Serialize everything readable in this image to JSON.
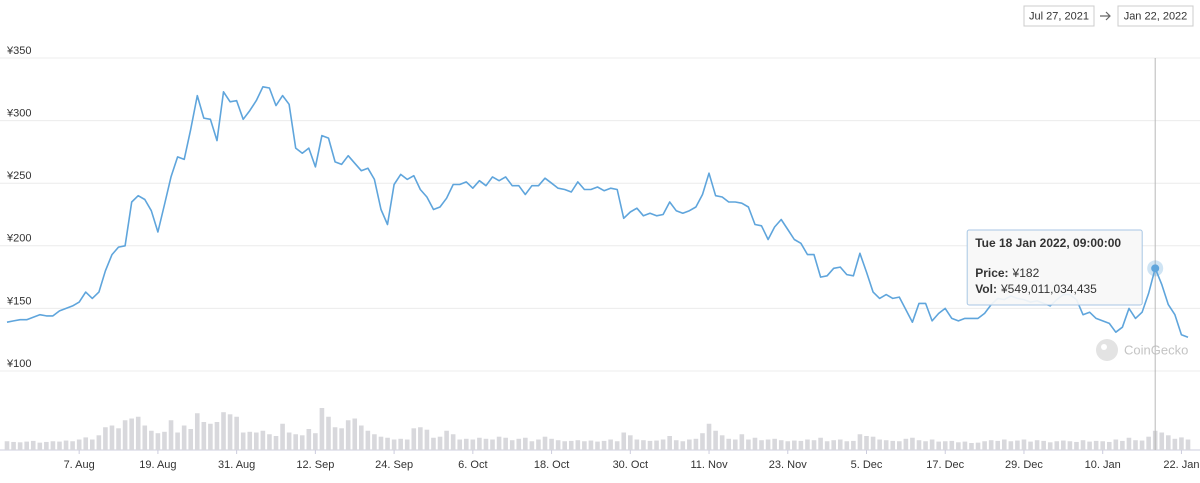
{
  "chart_data": {
    "type": "line",
    "range": {
      "from": "Jul 27, 2021",
      "to": "Jan 22, 2022"
    },
    "watermark": "CoinGecko",
    "x": [
      "2021-07-27",
      "2021-07-28",
      "2021-07-29",
      "2021-07-30",
      "2021-07-31",
      "2021-08-01",
      "2021-08-02",
      "2021-08-03",
      "2021-08-04",
      "2021-08-05",
      "2021-08-06",
      "2021-08-07",
      "2021-08-08",
      "2021-08-09",
      "2021-08-10",
      "2021-08-11",
      "2021-08-12",
      "2021-08-13",
      "2021-08-14",
      "2021-08-15",
      "2021-08-16",
      "2021-08-17",
      "2021-08-18",
      "2021-08-19",
      "2021-08-20",
      "2021-08-21",
      "2021-08-22",
      "2021-08-23",
      "2021-08-24",
      "2021-08-25",
      "2021-08-26",
      "2021-08-27",
      "2021-08-28",
      "2021-08-29",
      "2021-08-30",
      "2021-08-31",
      "2021-09-01",
      "2021-09-02",
      "2021-09-03",
      "2021-09-04",
      "2021-09-05",
      "2021-09-06",
      "2021-09-07",
      "2021-09-08",
      "2021-09-09",
      "2021-09-10",
      "2021-09-11",
      "2021-09-12",
      "2021-09-13",
      "2021-09-14",
      "2021-09-15",
      "2021-09-16",
      "2021-09-17",
      "2021-09-18",
      "2021-09-19",
      "2021-09-20",
      "2021-09-21",
      "2021-09-22",
      "2021-09-23",
      "2021-09-24",
      "2021-09-25",
      "2021-09-26",
      "2021-09-27",
      "2021-09-28",
      "2021-09-29",
      "2021-09-30",
      "2021-10-01",
      "2021-10-02",
      "2021-10-03",
      "2021-10-04",
      "2021-10-05",
      "2021-10-06",
      "2021-10-07",
      "2021-10-08",
      "2021-10-09",
      "2021-10-10",
      "2021-10-11",
      "2021-10-12",
      "2021-10-13",
      "2021-10-14",
      "2021-10-15",
      "2021-10-16",
      "2021-10-17",
      "2021-10-18",
      "2021-10-19",
      "2021-10-20",
      "2021-10-21",
      "2021-10-22",
      "2021-10-23",
      "2021-10-24",
      "2021-10-25",
      "2021-10-26",
      "2021-10-27",
      "2021-10-28",
      "2021-10-29",
      "2021-10-30",
      "2021-10-31",
      "2021-11-01",
      "2021-11-02",
      "2021-11-03",
      "2021-11-04",
      "2021-11-05",
      "2021-11-06",
      "2021-11-07",
      "2021-11-08",
      "2021-11-09",
      "2021-11-10",
      "2021-11-11",
      "2021-11-12",
      "2021-11-13",
      "2021-11-14",
      "2021-11-15",
      "2021-11-16",
      "2021-11-17",
      "2021-11-18",
      "2021-11-19",
      "2021-11-20",
      "2021-11-21",
      "2021-11-22",
      "2021-11-23",
      "2021-11-24",
      "2021-11-25",
      "2021-11-26",
      "2021-11-27",
      "2021-11-28",
      "2021-11-29",
      "2021-11-30",
      "2021-12-01",
      "2021-12-02",
      "2021-12-03",
      "2021-12-04",
      "2021-12-05",
      "2021-12-06",
      "2021-12-07",
      "2021-12-08",
      "2021-12-09",
      "2021-12-10",
      "2021-12-11",
      "2021-12-12",
      "2021-12-13",
      "2021-12-14",
      "2021-12-15",
      "2021-12-16",
      "2021-12-17",
      "2021-12-18",
      "2021-12-19",
      "2021-12-20",
      "2021-12-21",
      "2021-12-22",
      "2021-12-23",
      "2021-12-24",
      "2021-12-25",
      "2021-12-26",
      "2021-12-27",
      "2021-12-28",
      "2021-12-29",
      "2021-12-30",
      "2021-12-31",
      "2022-01-01",
      "2022-01-02",
      "2022-01-03",
      "2022-01-04",
      "2022-01-05",
      "2022-01-06",
      "2022-01-07",
      "2022-01-08",
      "2022-01-09",
      "2022-01-10",
      "2022-01-11",
      "2022-01-12",
      "2022-01-13",
      "2022-01-14",
      "2022-01-15",
      "2022-01-16",
      "2022-01-17",
      "2022-01-18",
      "2022-01-19",
      "2022-01-20",
      "2022-01-21",
      "2022-01-22",
      "2022-01-23"
    ],
    "xlim": [
      "2021-07-27",
      "2022-01-23"
    ],
    "xticks": [
      {
        "value": "2021-08-07",
        "label": "7. Aug"
      },
      {
        "value": "2021-08-19",
        "label": "19. Aug"
      },
      {
        "value": "2021-08-31",
        "label": "31. Aug"
      },
      {
        "value": "2021-09-12",
        "label": "12. Sep"
      },
      {
        "value": "2021-09-24",
        "label": "24. Sep"
      },
      {
        "value": "2021-10-06",
        "label": "6. Oct"
      },
      {
        "value": "2021-10-18",
        "label": "18. Oct"
      },
      {
        "value": "2021-10-30",
        "label": "30. Oct"
      },
      {
        "value": "2021-11-11",
        "label": "11. Nov"
      },
      {
        "value": "2021-11-23",
        "label": "23. Nov"
      },
      {
        "value": "2021-12-05",
        "label": "5. Dec"
      },
      {
        "value": "2021-12-17",
        "label": "17. Dec"
      },
      {
        "value": "2021-12-29",
        "label": "29. Dec"
      },
      {
        "value": "2022-01-10",
        "label": "10. Jan"
      },
      {
        "value": "2022-01-22",
        "label": "22. Jan"
      }
    ],
    "ylim": [
      100,
      350
    ],
    "yticks": [
      {
        "value": 100,
        "label": "¥100"
      },
      {
        "value": 150,
        "label": "¥150"
      },
      {
        "value": 200,
        "label": "¥200"
      },
      {
        "value": 250,
        "label": "¥250"
      },
      {
        "value": 300,
        "label": "¥300"
      },
      {
        "value": 350,
        "label": "¥350"
      }
    ],
    "grid": true,
    "series": [
      {
        "name": "Price:",
        "color": "#5fa5dc",
        "values": [
          139,
          140,
          141,
          141,
          143,
          145,
          144,
          144,
          148,
          150,
          152,
          155,
          163,
          158,
          163,
          180,
          193,
          199,
          200,
          235,
          240,
          237,
          228,
          211,
          233,
          255,
          271,
          269,
          293,
          320,
          302,
          301,
          284,
          323,
          315,
          316,
          301,
          308,
          316,
          327,
          326,
          312,
          320,
          313,
          278,
          274,
          278,
          263,
          288,
          286,
          267,
          265,
          272,
          266,
          260,
          262,
          253,
          229,
          217,
          249,
          257,
          253,
          256,
          245,
          239,
          229,
          231,
          238,
          249,
          249,
          251,
          246,
          252,
          248,
          255,
          252,
          255,
          248,
          248,
          241,
          248,
          248,
          254,
          250,
          246,
          245,
          243,
          251,
          245,
          245,
          247,
          244,
          246,
          245,
          222,
          227,
          230,
          224,
          226,
          224,
          225,
          235,
          228,
          226,
          228,
          231,
          241,
          258,
          240,
          239,
          235,
          235,
          234,
          231,
          217,
          216,
          205,
          215,
          221,
          213,
          205,
          202,
          193,
          193,
          175,
          176,
          182,
          183,
          177,
          176,
          194,
          179,
          163,
          158,
          161,
          158,
          159,
          149,
          139,
          154,
          154,
          140,
          146,
          150,
          142,
          140,
          142,
          142,
          142,
          146,
          153,
          158,
          157,
          160,
          158,
          157,
          155,
          156,
          154,
          152,
          157,
          161,
          161,
          157,
          145,
          147,
          142,
          140,
          138,
          131,
          135,
          150,
          142,
          147,
          162,
          182,
          169,
          153,
          145,
          129,
          127
        ]
      },
      {
        "name": "Vol:",
        "color": "#d8d8dc",
        "type": "bar",
        "values": [
          250000000000.0,
          230000000000.0,
          220000000000.0,
          240000000000.0,
          260000000000.0,
          210000000000.0,
          230000000000.0,
          250000000000.0,
          240000000000.0,
          270000000000.0,
          250000000000.0,
          300000000000.0,
          360000000000.0,
          300000000000.0,
          420000000000.0,
          650000000000.0,
          700000000000.0,
          620000000000.0,
          850000000000.0,
          900000000000.0,
          950000000000.0,
          700000000000.0,
          550000000000.0,
          480000000000.0,
          520000000000.0,
          850000000000.0,
          500000000000.0,
          700000000000.0,
          600000000000.0,
          1050000000000.0,
          800000000000.0,
          750000000000.0,
          800000000000.0,
          1080000000000.0,
          1020000000000.0,
          950000000000.0,
          500000000000.0,
          520000000000.0,
          500000000000.0,
          550000000000.0,
          450000000000.0,
          400000000000.0,
          750000000000.0,
          500000000000.0,
          450000000000.0,
          420000000000.0,
          600000000000.0,
          480000000000.0,
          1200000000000.0,
          950000000000.0,
          650000000000.0,
          620000000000.0,
          850000000000.0,
          900000000000.0,
          700000000000.0,
          550000000000.0,
          450000000000.0,
          380000000000.0,
          350000000000.0,
          300000000000.0,
          320000000000.0,
          300000000000.0,
          620000000000.0,
          650000000000.0,
          580000000000.0,
          350000000000.0,
          380000000000.0,
          550000000000.0,
          450000000000.0,
          300000000000.0,
          320000000000.0,
          300000000000.0,
          350000000000.0,
          320000000000.0,
          300000000000.0,
          380000000000.0,
          350000000000.0,
          280000000000.0,
          320000000000.0,
          350000000000.0,
          250000000000.0,
          300000000000.0,
          380000000000.0,
          320000000000.0,
          280000000000.0,
          250000000000.0,
          260000000000.0,
          280000000000.0,
          250000000000.0,
          270000000000.0,
          240000000000.0,
          260000000000.0,
          300000000000.0,
          250000000000.0,
          500000000000.0,
          420000000000.0,
          300000000000.0,
          280000000000.0,
          260000000000.0,
          270000000000.0,
          300000000000.0,
          400000000000.0,
          280000000000.0,
          250000000000.0,
          300000000000.0,
          320000000000.0,
          480000000000.0,
          750000000000.0,
          550000000000.0,
          420000000000.0,
          320000000000.0,
          300000000000.0,
          450000000000.0,
          300000000000.0,
          350000000000.0,
          280000000000.0,
          300000000000.0,
          320000000000.0,
          280000000000.0,
          250000000000.0,
          270000000000.0,
          260000000000.0,
          300000000000.0,
          280000000000.0,
          350000000000.0,
          250000000000.0,
          280000000000.0,
          300000000000.0,
          250000000000.0,
          260000000000.0,
          450000000000.0,
          400000000000.0,
          380000000000.0,
          300000000000.0,
          280000000000.0,
          260000000000.0,
          250000000000.0,
          320000000000.0,
          350000000000.0,
          280000000000.0,
          250000000000.0,
          300000000000.0,
          240000000000.0,
          250000000000.0,
          260000000000.0,
          220000000000.0,
          240000000000.0,
          200000000000.0,
          210000000000.0,
          250000000000.0,
          280000000000.0,
          260000000000.0,
          300000000000.0,
          250000000000.0,
          270000000000.0,
          300000000000.0,
          240000000000.0,
          280000000000.0,
          260000000000.0,
          220000000000.0,
          250000000000.0,
          270000000000.0,
          250000000000.0,
          230000000000.0,
          280000000000.0,
          240000000000.0,
          260000000000.0,
          250000000000.0,
          230000000000.0,
          300000000000.0,
          260000000000.0,
          350000000000.0,
          280000000000.0,
          270000000000.0,
          380000000000.0,
          549011034435,
          500000000000.0,
          420000000000.0,
          320000000000.0,
          360000000000.0,
          300000000000.0
        ]
      }
    ],
    "tooltip": {
      "x": "2022-01-18",
      "title": "Tue 18 Jan 2022, 09:00:00",
      "labels": [
        "¥182",
        "¥549,011,034,435"
      ]
    }
  }
}
